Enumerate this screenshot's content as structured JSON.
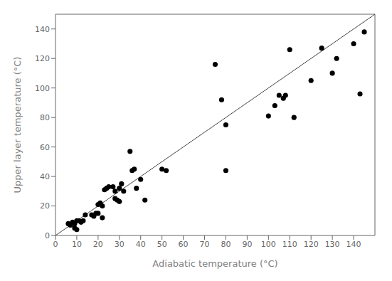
{
  "chart_data": {
    "type": "scatter",
    "xlabel": "Adiabatic temperature (°C)",
    "ylabel": "Upper layer temperature (°C)",
    "series": [
      {
        "type": "line",
        "color": "#444444",
        "x": [
          0,
          150
        ],
        "values": [
          0,
          150
        ]
      },
      {
        "type": "scatter",
        "color": "black",
        "x": [
          6,
          7,
          8,
          9,
          9,
          10,
          10,
          11,
          12,
          13,
          14,
          17,
          18,
          19,
          20,
          20,
          21,
          22,
          22,
          23,
          24,
          25,
          27,
          28,
          28,
          29,
          30,
          30,
          31,
          32,
          35,
          36,
          37,
          38,
          40,
          42,
          50,
          52,
          75,
          78,
          80,
          80,
          100,
          103,
          105,
          107,
          108,
          110,
          112,
          120,
          125,
          130,
          132,
          140,
          143,
          145
        ],
        "values": [
          8,
          7,
          9,
          8,
          5,
          10,
          4,
          10,
          9,
          10,
          14,
          14,
          13,
          15,
          15,
          21,
          22,
          20,
          12,
          31,
          32,
          33,
          33,
          30,
          25,
          24,
          32,
          23,
          35,
          30,
          57,
          44,
          45,
          32,
          38,
          24,
          45,
          44,
          116,
          92,
          75,
          44,
          81,
          88,
          95,
          93,
          95,
          126,
          80,
          105,
          127,
          110,
          120,
          130,
          96,
          138
        ]
      }
    ],
    "xlim": [
      0,
      150
    ],
    "ylim": [
      0,
      150
    ],
    "xticks": [
      0,
      10,
      20,
      30,
      40,
      50,
      60,
      70,
      80,
      90,
      100,
      110,
      120,
      130,
      140
    ],
    "yticks": [
      0,
      20,
      40,
      60,
      80,
      100,
      120,
      140
    ],
    "grid": false
  }
}
